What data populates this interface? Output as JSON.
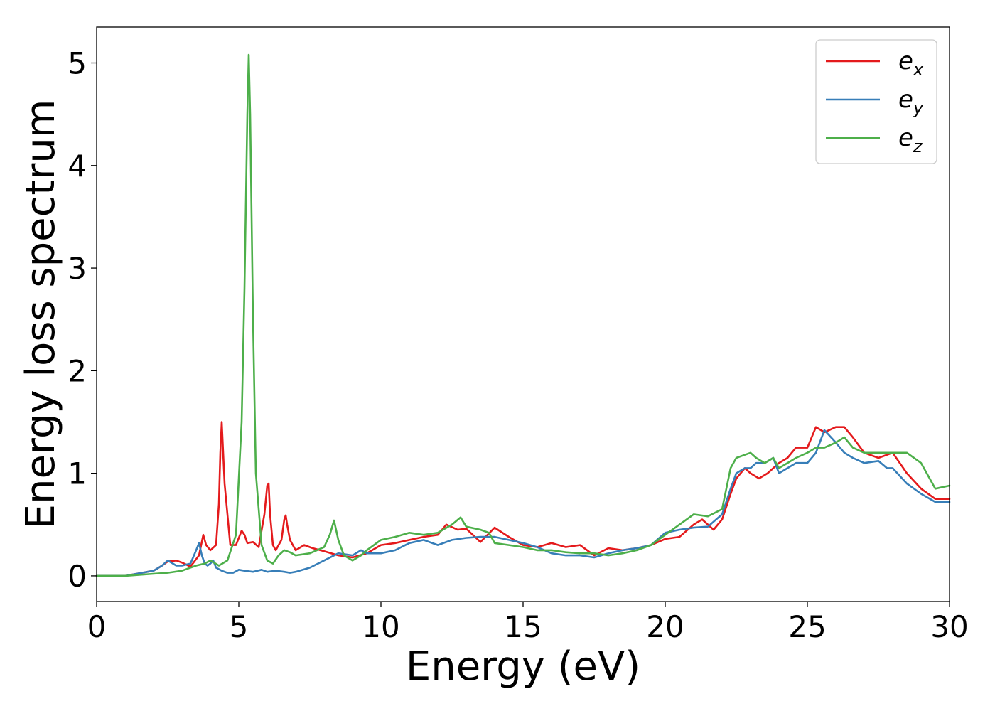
{
  "chart_data": {
    "type": "line",
    "title": "",
    "xlabel": "Energy (eV)",
    "ylabel": "Energy loss spectrum",
    "xlim": [
      0,
      30
    ],
    "ylim": [
      -0.25,
      5.35
    ],
    "xticks": [
      0,
      5,
      10,
      15,
      20,
      25,
      30
    ],
    "yticks": [
      0,
      1,
      2,
      3,
      4,
      5
    ],
    "grid": false,
    "legend_position": "top-right",
    "series": [
      {
        "name": "e",
        "subscript": "x",
        "color": "#e41a1c",
        "x": [
          0,
          1,
          2,
          2.3,
          2.5,
          2.8,
          3.0,
          3.3,
          3.6,
          3.75,
          3.85,
          4.0,
          4.2,
          4.3,
          4.35,
          4.4,
          4.5,
          4.7,
          4.9,
          5.1,
          5.2,
          5.3,
          5.5,
          5.7,
          5.9,
          6.0,
          6.05,
          6.1,
          6.2,
          6.3,
          6.5,
          6.6,
          6.65,
          6.7,
          6.8,
          7.0,
          7.3,
          7.6,
          8.0,
          8.5,
          9.0,
          9.5,
          10.0,
          10.5,
          11.0,
          11.5,
          12.0,
          12.3,
          12.7,
          13.0,
          13.5,
          14.0,
          14.5,
          15.0,
          15.5,
          16.0,
          16.5,
          17.0,
          17.5,
          18.0,
          18.5,
          19.0,
          19.5,
          20.0,
          20.5,
          21.0,
          21.3,
          21.7,
          22.0,
          22.3,
          22.5,
          22.8,
          23.0,
          23.3,
          23.6,
          24.0,
          24.3,
          24.6,
          25.0,
          25.3,
          25.6,
          26.0,
          26.3,
          26.6,
          27.0,
          27.5,
          28.0,
          28.5,
          29.0,
          29.5,
          30.0
        ],
        "y": [
          0.0,
          0.0,
          0.05,
          0.1,
          0.14,
          0.15,
          0.13,
          0.09,
          0.2,
          0.4,
          0.3,
          0.25,
          0.3,
          0.7,
          1.2,
          1.5,
          0.9,
          0.3,
          0.3,
          0.44,
          0.4,
          0.32,
          0.33,
          0.28,
          0.6,
          0.88,
          0.9,
          0.6,
          0.3,
          0.25,
          0.35,
          0.55,
          0.59,
          0.5,
          0.35,
          0.25,
          0.3,
          0.27,
          0.24,
          0.2,
          0.18,
          0.22,
          0.3,
          0.32,
          0.35,
          0.38,
          0.4,
          0.5,
          0.45,
          0.46,
          0.33,
          0.47,
          0.38,
          0.3,
          0.28,
          0.32,
          0.28,
          0.3,
          0.2,
          0.27,
          0.25,
          0.27,
          0.3,
          0.36,
          0.38,
          0.5,
          0.55,
          0.45,
          0.55,
          0.8,
          0.95,
          1.05,
          1.0,
          0.95,
          1.0,
          1.1,
          1.15,
          1.25,
          1.25,
          1.45,
          1.4,
          1.45,
          1.45,
          1.35,
          1.2,
          1.15,
          1.2,
          1.0,
          0.85,
          0.75,
          0.75
        ]
      },
      {
        "name": "e",
        "subscript": "y",
        "color": "#377eb8",
        "x": [
          0,
          1,
          2,
          2.3,
          2.5,
          2.8,
          3.0,
          3.3,
          3.5,
          3.6,
          3.7,
          3.8,
          3.9,
          4.0,
          4.1,
          4.2,
          4.4,
          4.6,
          4.8,
          5.0,
          5.2,
          5.5,
          5.8,
          6.0,
          6.3,
          6.6,
          6.8,
          7.0,
          7.5,
          8.0,
          8.5,
          9.0,
          9.3,
          9.5,
          10.0,
          10.5,
          11.0,
          11.5,
          12.0,
          12.5,
          13.0,
          13.5,
          14.0,
          14.5,
          15.0,
          15.5,
          16.0,
          16.5,
          17.0,
          17.5,
          18.0,
          18.5,
          19.0,
          19.5,
          20.0,
          20.5,
          21.0,
          21.5,
          22.0,
          22.3,
          22.5,
          22.8,
          23.0,
          23.2,
          23.5,
          23.8,
          24.0,
          24.3,
          24.6,
          25.0,
          25.3,
          25.6,
          26.0,
          26.3,
          26.6,
          27.0,
          27.5,
          27.8,
          28.0,
          28.5,
          29.0,
          29.5,
          30.0
        ],
        "y": [
          0.0,
          0.0,
          0.05,
          0.1,
          0.15,
          0.1,
          0.1,
          0.12,
          0.25,
          0.32,
          0.2,
          0.12,
          0.1,
          0.12,
          0.15,
          0.08,
          0.05,
          0.03,
          0.03,
          0.06,
          0.05,
          0.04,
          0.06,
          0.04,
          0.05,
          0.04,
          0.03,
          0.04,
          0.08,
          0.15,
          0.22,
          0.2,
          0.25,
          0.22,
          0.22,
          0.25,
          0.32,
          0.35,
          0.3,
          0.35,
          0.37,
          0.38,
          0.38,
          0.35,
          0.32,
          0.28,
          0.22,
          0.2,
          0.2,
          0.18,
          0.22,
          0.25,
          0.27,
          0.3,
          0.42,
          0.45,
          0.47,
          0.48,
          0.6,
          0.85,
          1.0,
          1.05,
          1.05,
          1.1,
          1.1,
          1.15,
          1.0,
          1.05,
          1.1,
          1.1,
          1.2,
          1.42,
          1.3,
          1.2,
          1.15,
          1.1,
          1.12,
          1.05,
          1.05,
          0.9,
          0.8,
          0.72,
          0.72
        ]
      },
      {
        "name": "e",
        "subscript": "z",
        "color": "#4daf4a",
        "x": [
          0,
          1,
          2,
          2.5,
          3.0,
          3.5,
          3.8,
          4.0,
          4.3,
          4.6,
          4.9,
          5.1,
          5.2,
          5.3,
          5.35,
          5.4,
          5.5,
          5.6,
          5.8,
          6.0,
          6.2,
          6.4,
          6.6,
          6.8,
          7.0,
          7.5,
          8.0,
          8.2,
          8.35,
          8.5,
          8.7,
          9.0,
          9.3,
          9.5,
          10.0,
          10.5,
          11.0,
          11.5,
          12.0,
          12.5,
          12.8,
          13.0,
          13.5,
          13.8,
          14.0,
          14.5,
          15.0,
          15.5,
          16.0,
          16.5,
          17.0,
          17.5,
          18.0,
          18.5,
          19.0,
          19.5,
          20.0,
          20.5,
          21.0,
          21.5,
          22.0,
          22.3,
          22.5,
          22.8,
          23.0,
          23.2,
          23.5,
          23.8,
          24.0,
          24.3,
          24.6,
          25.0,
          25.3,
          25.6,
          26.0,
          26.3,
          26.6,
          27.0,
          27.5,
          28.0,
          28.5,
          29.0,
          29.5,
          30.0
        ],
        "y": [
          0.0,
          0.0,
          0.02,
          0.03,
          0.05,
          0.1,
          0.12,
          0.15,
          0.1,
          0.15,
          0.4,
          1.5,
          2.8,
          4.5,
          5.08,
          4.5,
          2.5,
          1.0,
          0.3,
          0.15,
          0.12,
          0.2,
          0.25,
          0.23,
          0.2,
          0.22,
          0.28,
          0.4,
          0.54,
          0.35,
          0.2,
          0.15,
          0.2,
          0.25,
          0.35,
          0.38,
          0.42,
          0.4,
          0.42,
          0.5,
          0.57,
          0.48,
          0.45,
          0.42,
          0.32,
          0.3,
          0.28,
          0.25,
          0.25,
          0.23,
          0.22,
          0.22,
          0.2,
          0.22,
          0.25,
          0.3,
          0.4,
          0.5,
          0.6,
          0.58,
          0.65,
          1.05,
          1.15,
          1.18,
          1.2,
          1.15,
          1.1,
          1.15,
          1.05,
          1.1,
          1.15,
          1.2,
          1.25,
          1.25,
          1.3,
          1.35,
          1.25,
          1.2,
          1.2,
          1.2,
          1.2,
          1.1,
          0.85,
          0.88
        ]
      }
    ]
  }
}
